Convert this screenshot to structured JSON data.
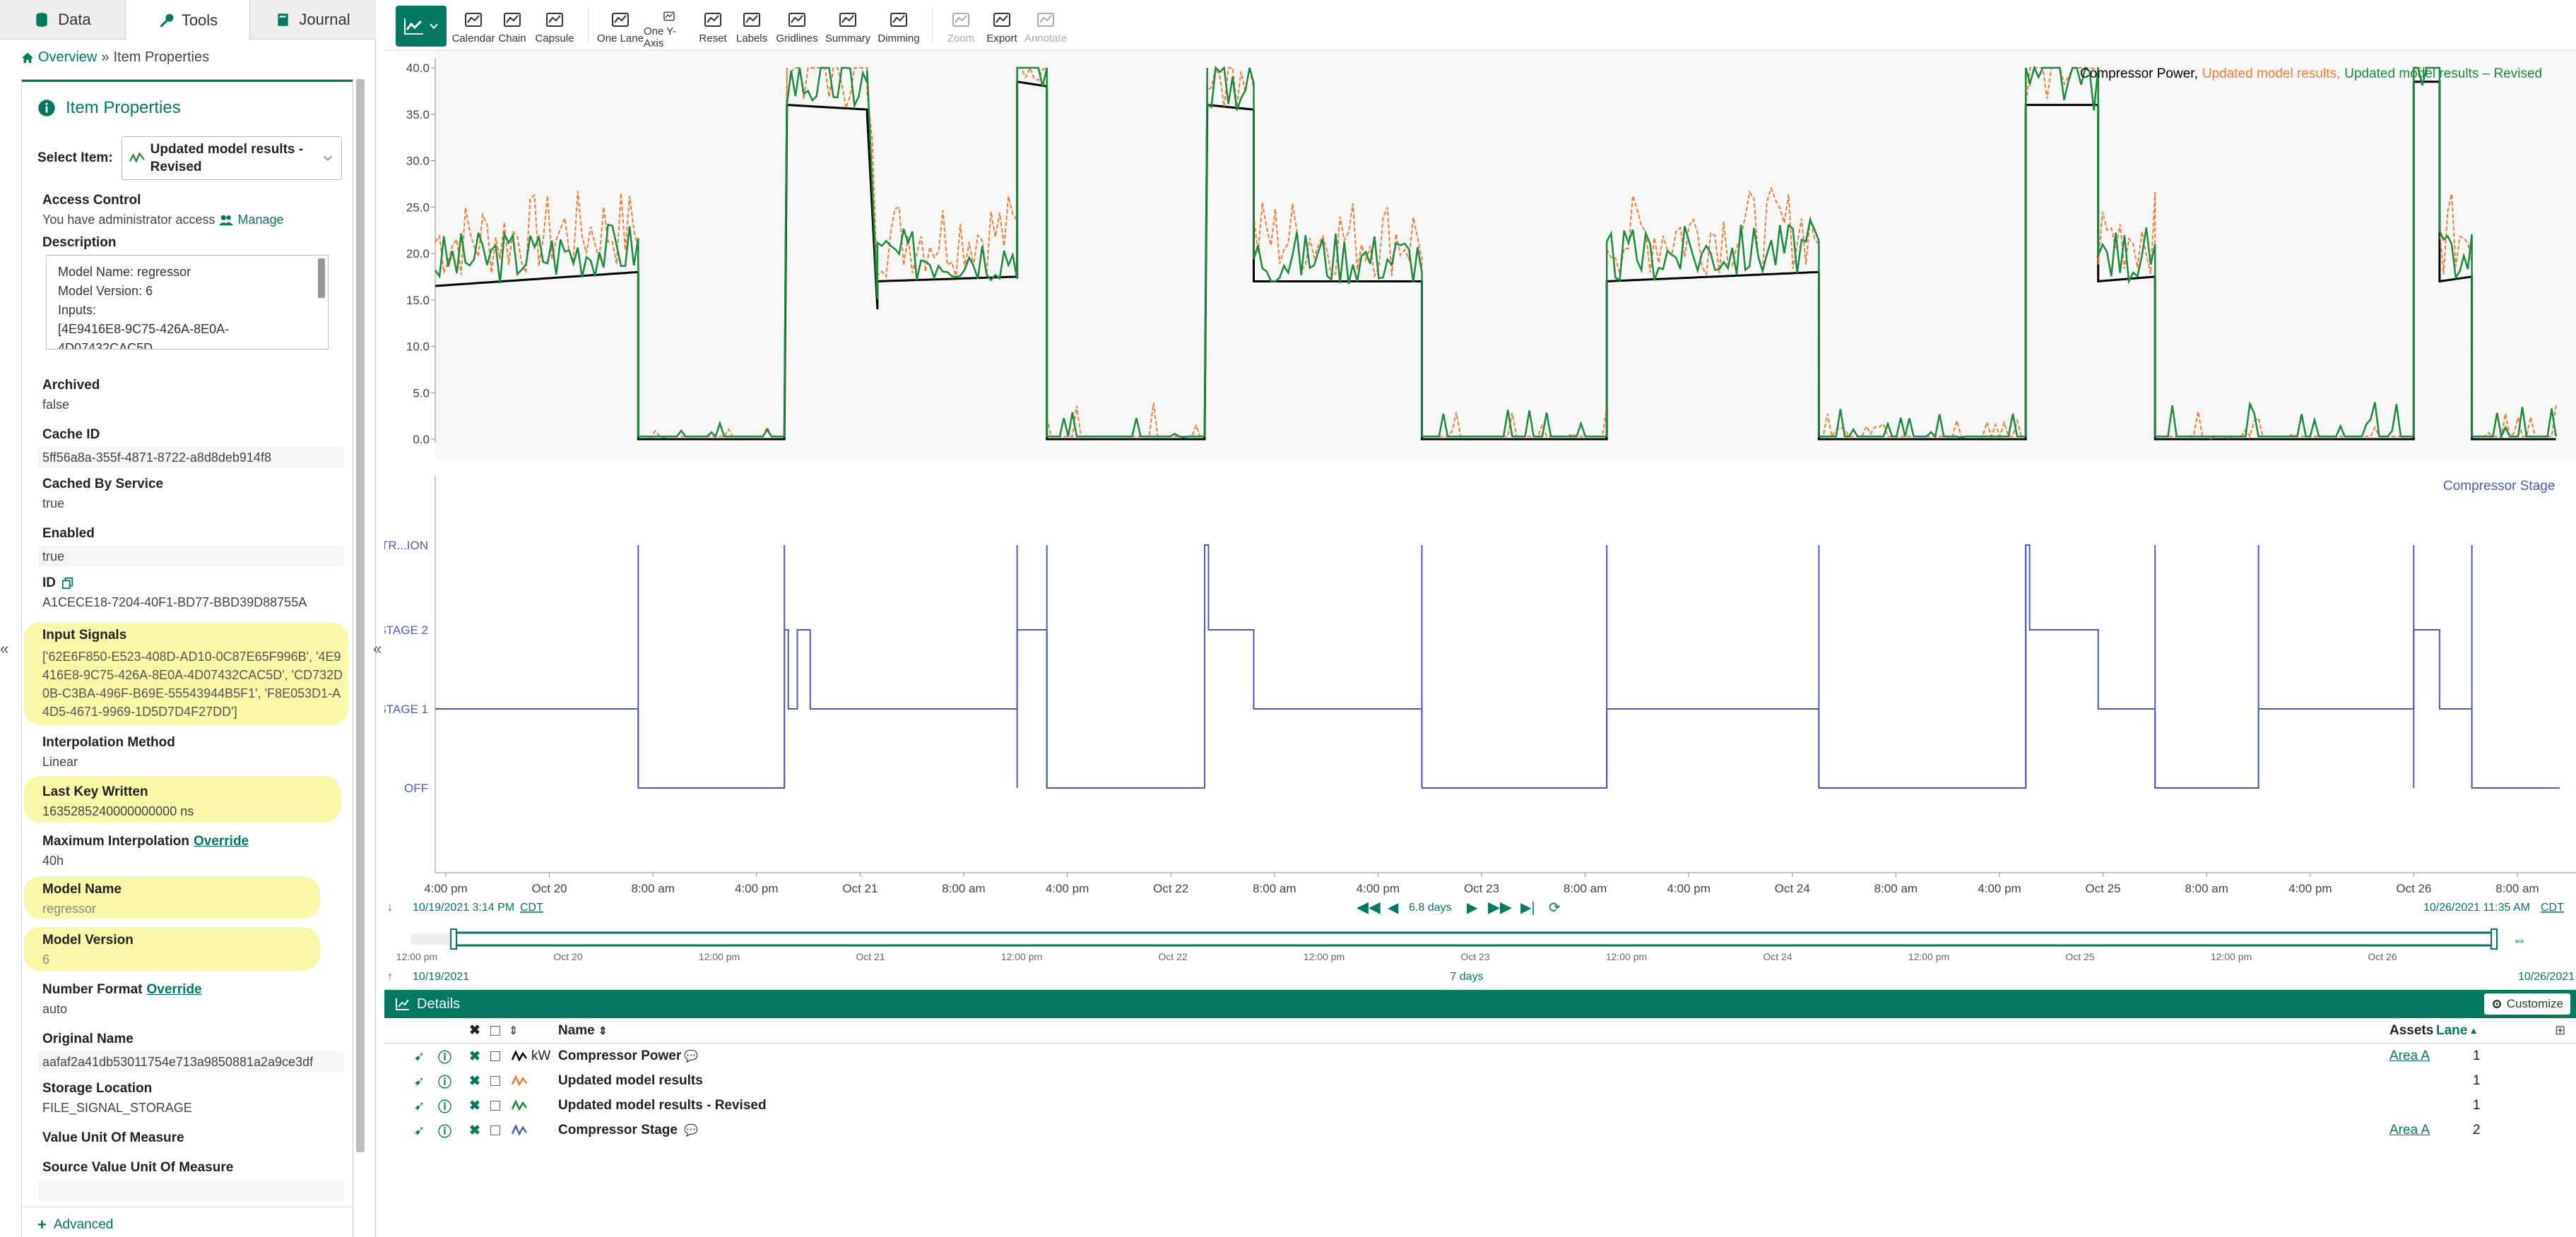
{
  "tabs": {
    "data": "Data",
    "tools": "Tools",
    "journal": "Journal"
  },
  "breadcrumb": {
    "overview": "Overview",
    "separator": "»",
    "current": "Item Properties"
  },
  "item_properties": {
    "title": "Item Properties",
    "select_label": "Select Item:",
    "select_value_line1": "Updated model results -",
    "select_value_line2": "Revised",
    "access_control_label": "Access Control",
    "access_control_text": "You have administrator access",
    "manage_label": "Manage",
    "description_label": "Description",
    "description_lines": [
      "Model Name: regressor",
      "Model Version: 6",
      "Inputs:",
      "[4E9416E8-9C75-426A-8E0A-",
      "4D07432CAC5D"
    ],
    "fields": {
      "archived": {
        "name": "Archived",
        "value": "false"
      },
      "cache_id": {
        "name": "Cache ID",
        "value": "5ff56a8a-355f-4871-8722-a8d8deb914f8"
      },
      "cached_by_service": {
        "name": "Cached By Service",
        "value": "true"
      },
      "enabled": {
        "name": "Enabled",
        "value": "true"
      },
      "id": {
        "name": "ID",
        "value": "A1CECE18-7204-40F1-BD77-BBD39D88755A"
      },
      "input_signals": {
        "name": "Input Signals",
        "value_lines": [
          "['62E6F850-E523-408D-AD10-0C87E65F996B', '4E9",
          "416E8-9C75-426A-8E0A-4D07432CAC5D', 'CD732D",
          "0B-C3BA-496F-B69E-55543944B5F1', 'F8E053D1-A",
          "4D5-4671-9969-1D5D7D4F27DD']"
        ]
      },
      "interpolation_method": {
        "name": "Interpolation Method",
        "value": "Linear"
      },
      "last_key_written": {
        "name": "Last Key Written",
        "value": "1635285240000000000 ns"
      },
      "max_interpolation": {
        "name": "Maximum Interpolation",
        "override": "Override",
        "value": "40h"
      },
      "model_name": {
        "name": "Model Name",
        "value": "regressor"
      },
      "model_version": {
        "name": "Model Version",
        "value": "6"
      },
      "number_format": {
        "name": "Number Format",
        "override": "Override",
        "value": "auto"
      },
      "original_name": {
        "name": "Original Name",
        "value": "aafaf2a41db53011754e713a9850881a2a9ce3df"
      },
      "storage_location": {
        "name": "Storage Location",
        "value": "FILE_SIGNAL_STORAGE"
      },
      "value_uom": {
        "name": "Value Unit Of Measure",
        "value": ""
      },
      "source_value_uom": {
        "name": "Source Value Unit Of Measure",
        "value": ""
      }
    },
    "advanced_label": "Advanced"
  },
  "toolbar": {
    "buttons": [
      {
        "label": "Calendar",
        "icon": "calendar-icon"
      },
      {
        "label": "Chain",
        "icon": "chain-icon"
      },
      {
        "label": "Capsule",
        "icon": "capsule-icon"
      },
      {
        "label": "One Lane",
        "icon": "one-lane-icon"
      },
      {
        "label": "One Y-Axis",
        "icon": "one-y-axis-icon"
      },
      {
        "label": "Reset",
        "icon": "reset-icon"
      },
      {
        "label": "Labels",
        "icon": "labels-icon"
      },
      {
        "label": "Gridlines",
        "icon": "gridlines-icon"
      },
      {
        "label": "Summary",
        "icon": "summary-icon"
      },
      {
        "label": "Dimming",
        "icon": "dimming-icon"
      },
      {
        "label": "Zoom",
        "icon": "zoom-icon"
      },
      {
        "label": "Export",
        "icon": "export-icon"
      },
      {
        "label": "Annotate",
        "icon": "annotate-icon"
      }
    ]
  },
  "chart": {
    "legend_top": {
      "s1": "Compressor Power",
      "sep1": ",",
      "s2": "Updated model results",
      "sep2": ",",
      "s3": "Updated model results – Revised"
    },
    "legend_bottom": "Compressor Stage",
    "colors": {
      "power": "#000000",
      "model": "#f47b35",
      "revised": "#1a8a3c",
      "stage": "#4a5bbd",
      "accent": "#007960"
    },
    "x_ticks": [
      "4:00 pm",
      "Oct 20",
      "8:00 am",
      "4:00 pm",
      "Oct 21",
      "8:00 am",
      "4:00 pm",
      "Oct 22",
      "8:00 am",
      "4:00 pm",
      "Oct 23",
      "8:00 am",
      "4:00 pm",
      "Oct 24",
      "8:00 am",
      "4:00 pm",
      "Oct 25",
      "8:00 am",
      "4:00 pm",
      "Oct 26",
      "8:00 am"
    ],
    "start_time": "10/19/2021 3:14 PM",
    "end_time": "10/26/2021 11:35 AM",
    "tz": "CDT",
    "duration": "6.8 days",
    "nav_ticks": [
      "12:00 pm",
      "Oct 20",
      "12:00 pm",
      "Oct 21",
      "12:00 pm",
      "Oct 22",
      "12:00 pm",
      "Oct 23",
      "12:00 pm",
      "Oct 24",
      "12:00 pm",
      "Oct 25",
      "12:00 pm",
      "Oct 26"
    ],
    "nav_start": "10/19/2021",
    "nav_end": "10/26/2021",
    "nav_span": "7 days"
  },
  "chart_data": [
    {
      "type": "line",
      "title": "",
      "xlabel": "",
      "ylabel": "",
      "ylim": [
        0,
        40
      ],
      "y_ticks": [
        "40.0",
        "35.0",
        "30.0",
        "25.0",
        "20.0",
        "15.0",
        "10.0",
        "5.0",
        "0.0"
      ],
      "x": [
        "Oct 19 3:14 PM",
        "Oct 20 12:00 AM",
        "Oct 20 4:00 PM",
        "Oct 21 12:00 AM",
        "Oct 21 4:00 PM",
        "Oct 22 12:00 AM",
        "Oct 22 4:00 PM",
        "Oct 23 12:00 AM",
        "Oct 23 4:00 PM",
        "Oct 24 12:00 AM",
        "Oct 24 4:00 PM",
        "Oct 25 12:00 AM",
        "Oct 25 4:00 PM",
        "Oct 26 12:00 AM",
        "Oct 26 11:35 AM"
      ],
      "series": [
        {
          "name": "Compressor Power",
          "values": [
            16.5,
            0,
            36,
            38.5,
            36,
            17,
            0,
            16.5,
            36,
            17,
            0,
            38.5,
            38.5,
            0,
            0
          ]
        },
        {
          "name": "Updated model results",
          "values": [
            21,
            0,
            17,
            27,
            30,
            18,
            0,
            20,
            15,
            18,
            2,
            37,
            35,
            3,
            3
          ]
        },
        {
          "name": "Updated model results - Revised",
          "values": [
            19,
            0,
            16,
            37,
            32,
            17,
            0,
            19,
            14,
            17,
            2,
            38,
            37,
            3,
            3
          ]
        }
      ]
    },
    {
      "type": "line",
      "title": "",
      "xlabel": "",
      "ylabel": "",
      "y_categories": [
        "TR...ION",
        "STAGE 2",
        "STAGE 1",
        "OFF"
      ],
      "series": [
        {
          "name": "Compressor Stage",
          "values": [
            "STAGE 1",
            "OFF",
            "STAGE 2",
            "STAGE 1",
            "STAGE 2",
            "STAGE 1",
            "OFF",
            "STAGE 1",
            "STAGE 2",
            "STAGE 1",
            "OFF",
            "STAGE 2",
            "STAGE 2",
            "OFF",
            "OFF"
          ]
        }
      ]
    }
  ],
  "details": {
    "title": "Details",
    "customize": "Customize",
    "col_name": "Name",
    "col_assets": "Assets",
    "col_lane": "Lane",
    "rows": [
      {
        "name": "Compressor Power",
        "unit": "kW",
        "asset": "Area A",
        "lane": "1",
        "color": "#000000",
        "comment": true
      },
      {
        "name": "Updated model results",
        "unit": "",
        "asset": "",
        "lane": "1",
        "color": "#f47b35",
        "comment": false
      },
      {
        "name": "Updated model results - Revised",
        "unit": "",
        "asset": "",
        "lane": "1",
        "color": "#1a8a3c",
        "comment": false
      },
      {
        "name": "Compressor Stage",
        "unit": "",
        "asset": "Area A",
        "lane": "2",
        "color": "#4a5bbd",
        "comment": true
      }
    ]
  }
}
